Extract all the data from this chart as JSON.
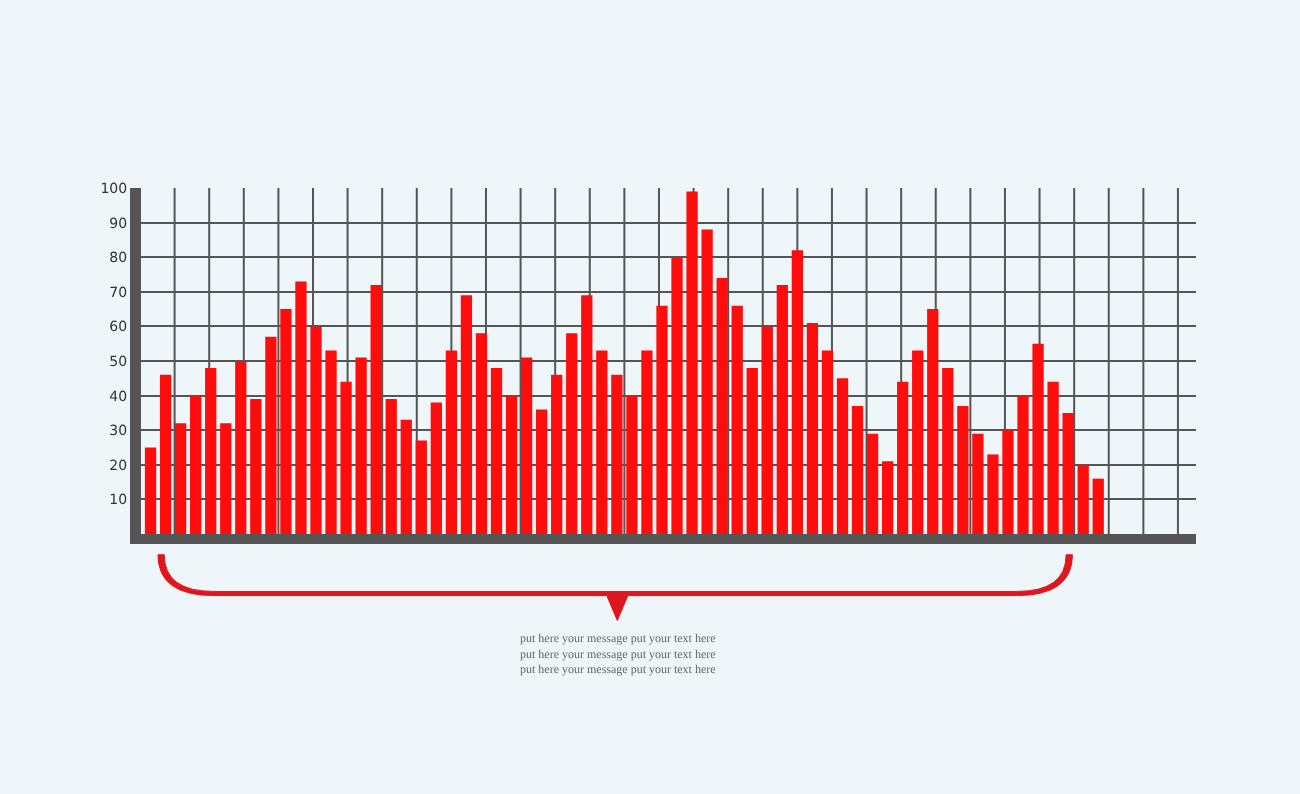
{
  "chart_data": {
    "type": "bar",
    "categories": [
      null,
      null,
      null,
      null,
      null,
      null,
      null,
      null,
      null,
      null,
      null,
      null,
      null,
      null,
      null,
      null,
      null,
      null,
      null,
      null,
      null,
      null,
      null,
      null,
      null,
      null,
      null,
      null,
      null,
      null,
      null,
      null,
      null,
      null,
      null,
      null,
      null,
      null,
      null,
      null,
      null,
      null,
      null,
      null,
      null,
      null,
      null,
      null,
      null,
      null,
      null,
      null,
      null,
      null,
      null,
      null,
      null,
      null,
      null,
      null,
      null,
      null,
      null,
      null,
      null,
      null,
      null,
      null,
      null,
      null
    ],
    "values": [
      25,
      46,
      32,
      40,
      48,
      32,
      50,
      39,
      57,
      65,
      73,
      60,
      53,
      44,
      51,
      72,
      39,
      33,
      27,
      38,
      53,
      69,
      58,
      48,
      40,
      51,
      36,
      46,
      58,
      69,
      53,
      46,
      40,
      53,
      66,
      80,
      99,
      88,
      74,
      66,
      48,
      60,
      72,
      82,
      61,
      53,
      45,
      37,
      29,
      21,
      44,
      53,
      65,
      48,
      37,
      29,
      23,
      30,
      40,
      55,
      44,
      35,
      20,
      16,
      null,
      null,
      null,
      null,
      null,
      null
    ],
    "color": "#ff0d0d",
    "ylim": [
      0,
      100
    ],
    "yticks": [
      10,
      20,
      30,
      40,
      50,
      60,
      70,
      80,
      90,
      100
    ],
    "grid": true,
    "tick_labels": "y",
    "annotations": [
      "put here your message put your text here\nput here your message put your text here\nput here your message put your text here"
    ]
  }
}
